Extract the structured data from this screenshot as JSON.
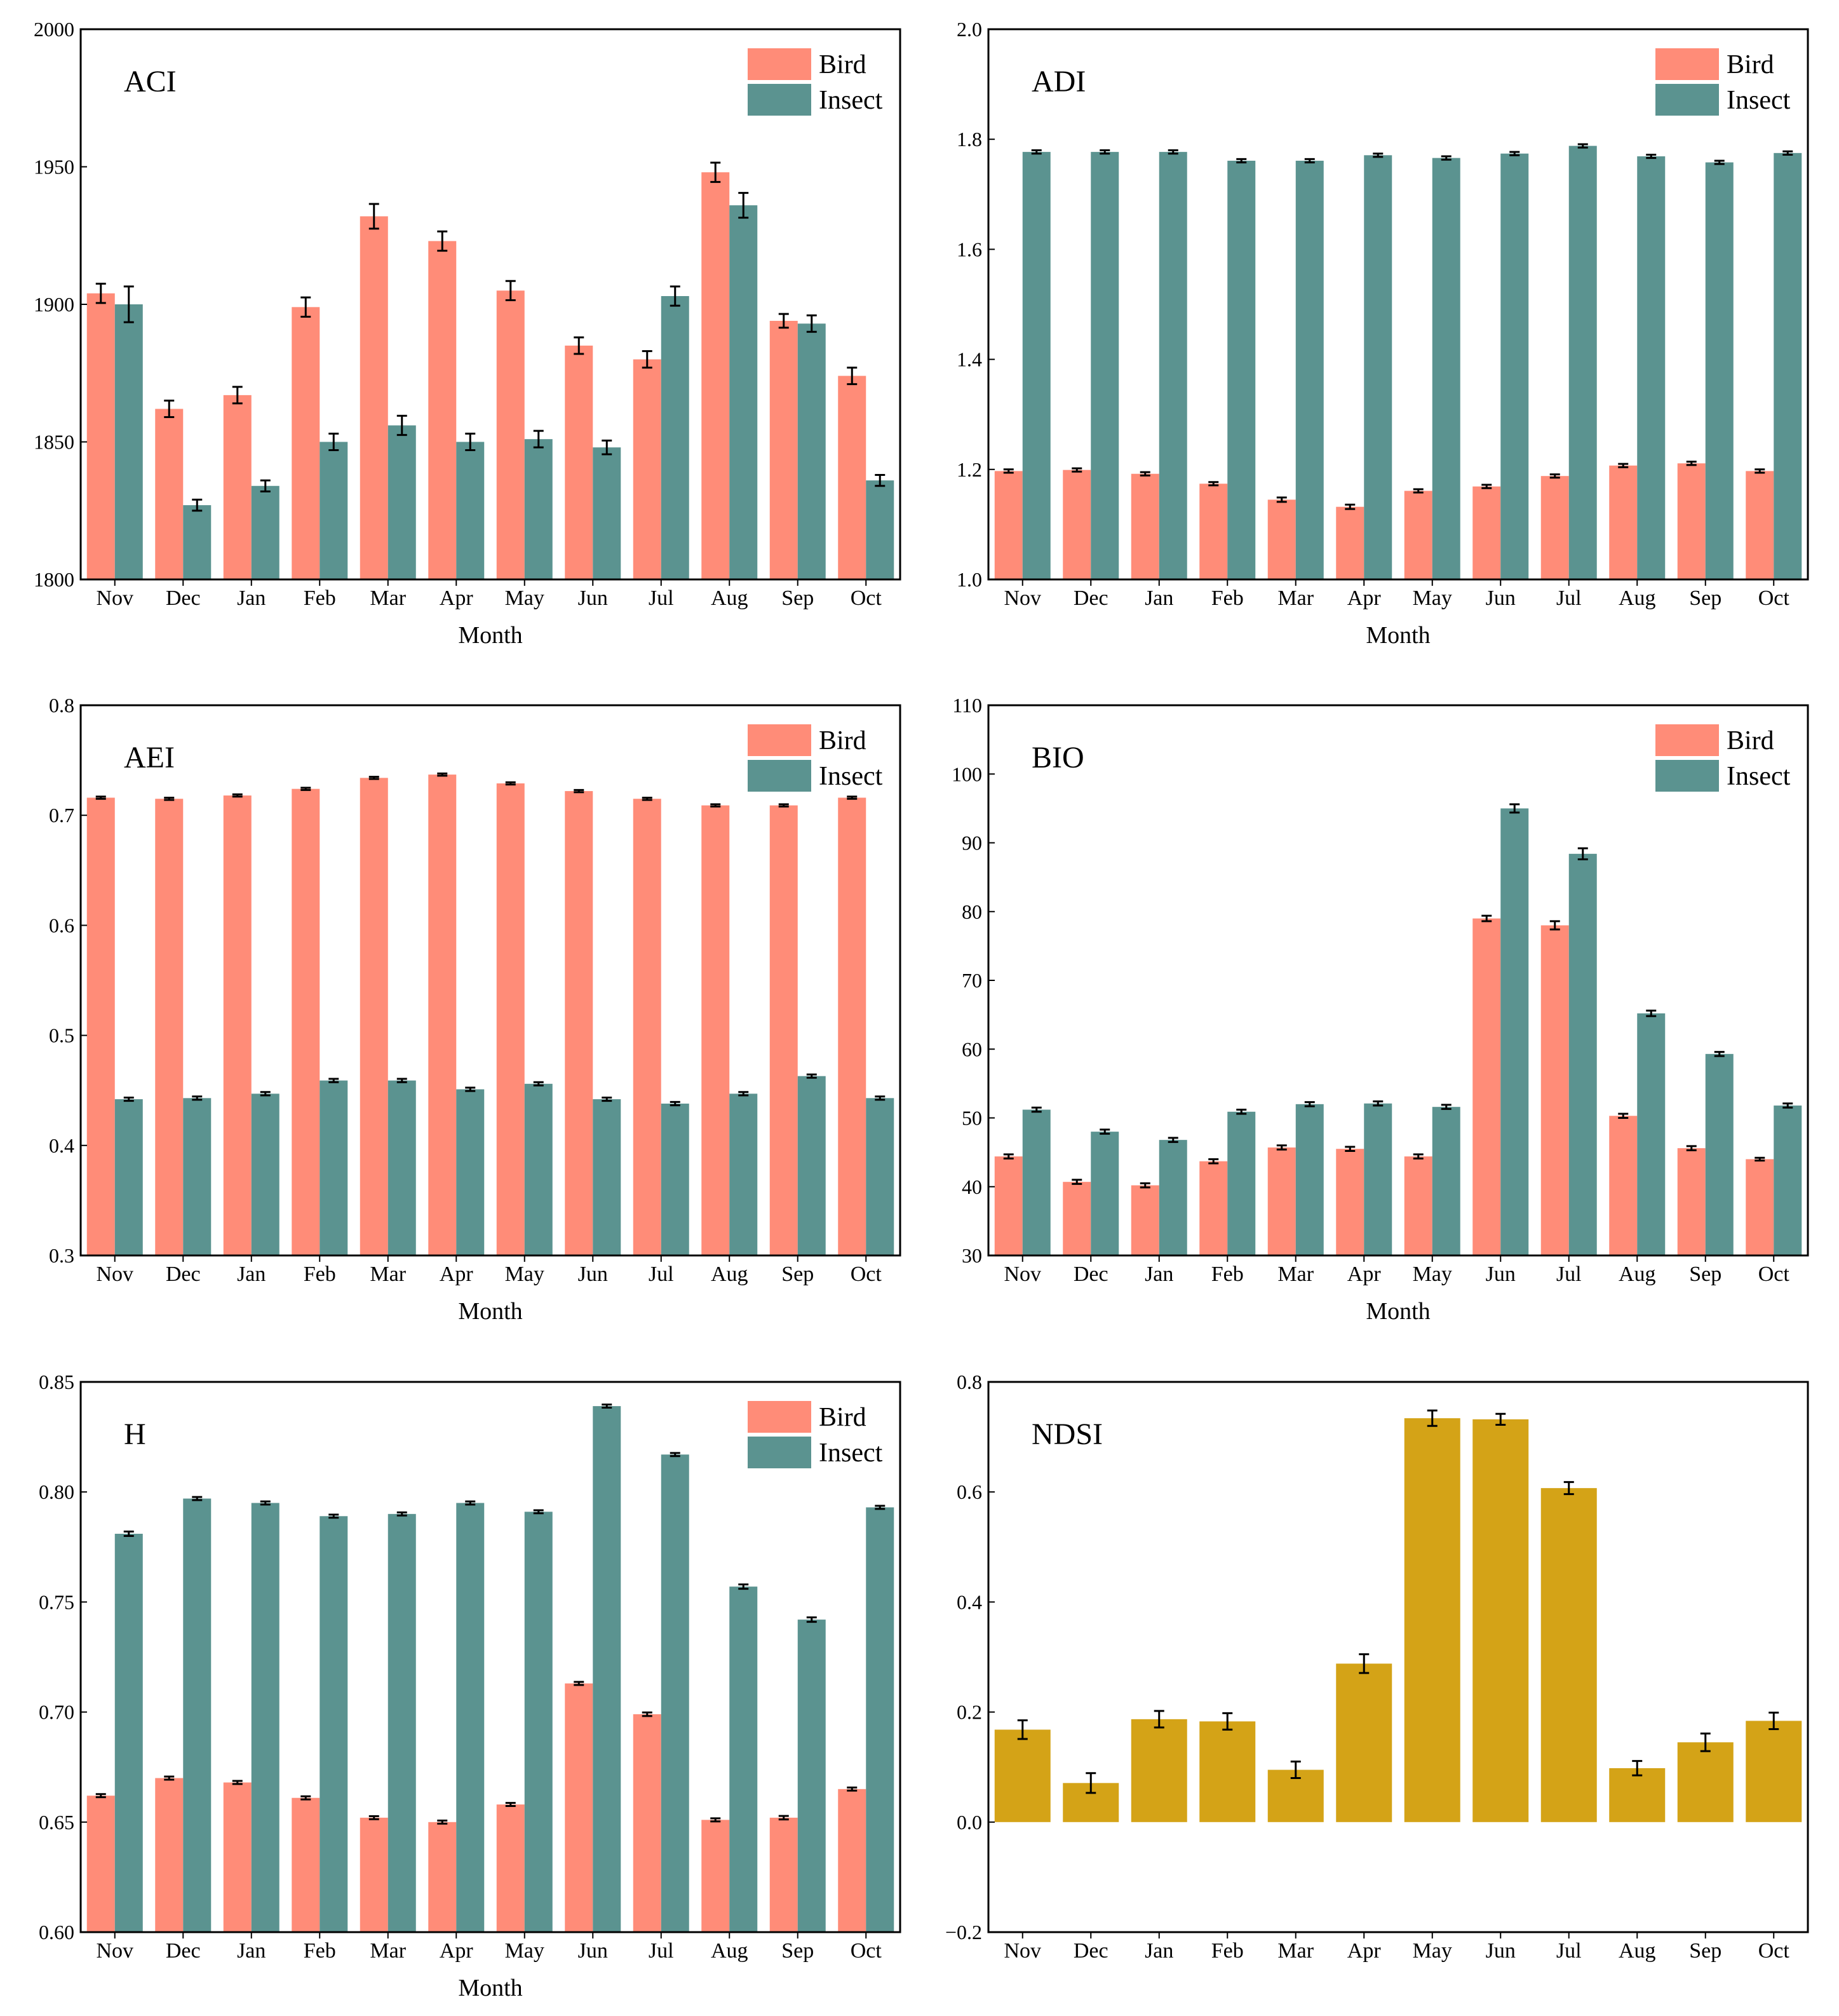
{
  "colors": {
    "bird": "#FF8C78",
    "insect": "#5B9390",
    "ndsi": "#D4A317",
    "axis": "#000000"
  },
  "x_categories": [
    "Nov",
    "Dec",
    "Jan",
    "Feb",
    "Mar",
    "Apr",
    "May",
    "Jun",
    "Jul",
    "Aug",
    "Sep",
    "Oct"
  ],
  "xlabel": "Month",
  "legend_labels": {
    "bird": "Bird",
    "insect": "Insect"
  },
  "chart_data": [
    {
      "id": "aci",
      "type": "bar",
      "title": "ACI",
      "xlabel": "Month",
      "ylabel": "",
      "categories": [
        "Nov",
        "Dec",
        "Jan",
        "Feb",
        "Mar",
        "Apr",
        "May",
        "Jun",
        "Jul",
        "Aug",
        "Sep",
        "Oct"
      ],
      "ylim": [
        1800,
        2000
      ],
      "yticks": [
        1800,
        1850,
        1900,
        1950,
        2000
      ],
      "ytick_labels": [
        "1800",
        "1850",
        "1900",
        "1950",
        "2000"
      ],
      "legend": true,
      "legend_position": "top-right",
      "series": [
        {
          "name": "Bird",
          "color_key": "bird",
          "values": [
            1904,
            1862,
            1867,
            1899,
            1932,
            1923,
            1905,
            1885,
            1880,
            1948,
            1894,
            1874
          ],
          "errors": [
            3.5,
            3,
            3,
            3.5,
            4.5,
            3.5,
            3.5,
            3,
            3,
            3.5,
            2.5,
            3
          ]
        },
        {
          "name": "Insect",
          "color_key": "insect",
          "values": [
            1900,
            1827,
            1834,
            1850,
            1856,
            1850,
            1851,
            1848,
            1903,
            1936,
            1893,
            1836
          ],
          "errors": [
            6.5,
            2,
            2,
            3,
            3.5,
            3,
            3,
            2.5,
            3.5,
            4.5,
            3,
            2
          ]
        }
      ]
    },
    {
      "id": "adi",
      "type": "bar",
      "title": "ADI",
      "xlabel": "Month",
      "ylabel": "",
      "categories": [
        "Nov",
        "Dec",
        "Jan",
        "Feb",
        "Mar",
        "Apr",
        "May",
        "Jun",
        "Jul",
        "Aug",
        "Sep",
        "Oct"
      ],
      "ylim": [
        1.0,
        2.0
      ],
      "yticks": [
        1.0,
        1.2,
        1.4,
        1.6,
        1.8,
        2.0
      ],
      "ytick_labels": [
        "1.0",
        "1.2",
        "1.4",
        "1.6",
        "1.8",
        "2.0"
      ],
      "legend": true,
      "legend_position": "top-right",
      "series": [
        {
          "name": "Bird",
          "color_key": "bird",
          "values": [
            1.197,
            1.199,
            1.192,
            1.174,
            1.145,
            1.132,
            1.161,
            1.169,
            1.188,
            1.207,
            1.211,
            1.197
          ],
          "errors": [
            0.003,
            0.003,
            0.003,
            0.003,
            0.004,
            0.004,
            0.003,
            0.003,
            0.003,
            0.003,
            0.003,
            0.003
          ]
        },
        {
          "name": "Insect",
          "color_key": "insect",
          "values": [
            1.777,
            1.777,
            1.777,
            1.761,
            1.761,
            1.771,
            1.766,
            1.774,
            1.788,
            1.769,
            1.758,
            1.775
          ],
          "errors": [
            0.003,
            0.003,
            0.003,
            0.003,
            0.003,
            0.003,
            0.003,
            0.003,
            0.003,
            0.003,
            0.003,
            0.003
          ]
        }
      ]
    },
    {
      "id": "aei",
      "type": "bar",
      "title": "AEI",
      "xlabel": "Month",
      "ylabel": "",
      "categories": [
        "Nov",
        "Dec",
        "Jan",
        "Feb",
        "Mar",
        "Apr",
        "May",
        "Jun",
        "Jul",
        "Aug",
        "Sep",
        "Oct"
      ],
      "ylim": [
        0.3,
        0.8
      ],
      "yticks": [
        0.3,
        0.4,
        0.5,
        0.6,
        0.7,
        0.8
      ],
      "ytick_labels": [
        "0.3",
        "0.4",
        "0.5",
        "0.6",
        "0.7",
        "0.8"
      ],
      "legend": true,
      "legend_position": "top-right",
      "series": [
        {
          "name": "Bird",
          "color_key": "bird",
          "values": [
            0.716,
            0.715,
            0.718,
            0.724,
            0.734,
            0.737,
            0.729,
            0.722,
            0.715,
            0.709,
            0.709,
            0.716
          ],
          "errors": [
            0.001,
            0.001,
            0.001,
            0.001,
            0.001,
            0.001,
            0.001,
            0.001,
            0.001,
            0.001,
            0.001,
            0.001
          ]
        },
        {
          "name": "Insect",
          "color_key": "insect",
          "values": [
            0.442,
            0.443,
            0.447,
            0.459,
            0.459,
            0.451,
            0.456,
            0.442,
            0.438,
            0.447,
            0.463,
            0.443
          ],
          "errors": [
            0.0015,
            0.0015,
            0.0015,
            0.0015,
            0.0015,
            0.0015,
            0.0015,
            0.0015,
            0.0015,
            0.0015,
            0.0015,
            0.0015
          ]
        }
      ]
    },
    {
      "id": "bio",
      "type": "bar",
      "title": "BIO",
      "xlabel": "Month",
      "ylabel": "",
      "categories": [
        "Nov",
        "Dec",
        "Jan",
        "Feb",
        "Mar",
        "Apr",
        "May",
        "Jun",
        "Jul",
        "Aug",
        "Sep",
        "Oct"
      ],
      "ylim": [
        30,
        110
      ],
      "yticks": [
        30,
        40,
        50,
        60,
        70,
        80,
        90,
        100,
        110
      ],
      "ytick_labels": [
        "30",
        "40",
        "50",
        "60",
        "70",
        "80",
        "90",
        "100",
        "110"
      ],
      "legend": true,
      "legend_position": "top-right",
      "series": [
        {
          "name": "Bird",
          "color_key": "bird",
          "values": [
            44.4,
            40.7,
            40.2,
            43.7,
            45.7,
            45.5,
            44.4,
            79.0,
            78.0,
            50.3,
            45.6,
            44.0
          ],
          "errors": [
            0.3,
            0.3,
            0.3,
            0.3,
            0.3,
            0.3,
            0.3,
            0.4,
            0.6,
            0.3,
            0.3,
            0.2
          ]
        },
        {
          "name": "Insect",
          "color_key": "insect",
          "values": [
            51.2,
            48.0,
            46.8,
            50.9,
            52.0,
            52.1,
            51.6,
            95.0,
            88.4,
            65.2,
            59.3,
            51.8
          ],
          "errors": [
            0.3,
            0.3,
            0.3,
            0.3,
            0.3,
            0.3,
            0.3,
            0.6,
            0.8,
            0.4,
            0.3,
            0.3
          ]
        }
      ]
    },
    {
      "id": "h",
      "type": "bar",
      "title": "H",
      "xlabel": "Month",
      "ylabel": "",
      "categories": [
        "Nov",
        "Dec",
        "Jan",
        "Feb",
        "Mar",
        "Apr",
        "May",
        "Jun",
        "Jul",
        "Aug",
        "Sep",
        "Oct"
      ],
      "ylim": [
        0.6,
        0.85
      ],
      "yticks": [
        0.6,
        0.65,
        0.7,
        0.75,
        0.8,
        0.85
      ],
      "ytick_labels": [
        "0.60",
        "0.65",
        "0.70",
        "0.75",
        "0.80",
        "0.85"
      ],
      "legend": true,
      "legend_position": "top-right",
      "series": [
        {
          "name": "Bird",
          "color_key": "bird",
          "values": [
            0.662,
            0.67,
            0.668,
            0.661,
            0.652,
            0.65,
            0.658,
            0.713,
            0.699,
            0.651,
            0.652,
            0.665
          ],
          "errors": [
            0.0007,
            0.0007,
            0.0007,
            0.0007,
            0.0007,
            0.0007,
            0.0007,
            0.0007,
            0.0008,
            0.0007,
            0.0008,
            0.0007
          ]
        },
        {
          "name": "Insect",
          "color_key": "insect",
          "values": [
            0.781,
            0.797,
            0.795,
            0.789,
            0.79,
            0.795,
            0.791,
            0.839,
            0.817,
            0.757,
            0.742,
            0.793
          ],
          "errors": [
            0.001,
            0.0007,
            0.0007,
            0.0007,
            0.0007,
            0.0007,
            0.0007,
            0.0007,
            0.0007,
            0.001,
            0.001,
            0.0007
          ]
        }
      ]
    },
    {
      "id": "ndsi",
      "type": "bar",
      "title": "NDSI",
      "xlabel": "",
      "ylabel": "",
      "categories": [
        "Nov",
        "Dec",
        "Jan",
        "Feb",
        "Mar",
        "Apr",
        "May",
        "Jun",
        "Jul",
        "Aug",
        "Sep",
        "Oct"
      ],
      "ylim": [
        -0.2,
        0.8
      ],
      "yticks": [
        -0.2,
        0.0,
        0.2,
        0.4,
        0.6,
        0.8
      ],
      "ytick_labels": [
        "−0.2",
        "0.0",
        "0.2",
        "0.4",
        "0.6",
        "0.8"
      ],
      "legend": false,
      "series": [
        {
          "name": "NDSI",
          "color_key": "ndsi",
          "values": [
            0.168,
            0.071,
            0.187,
            0.183,
            0.095,
            0.288,
            0.734,
            0.732,
            0.607,
            0.098,
            0.145,
            0.184
          ],
          "errors": [
            0.017,
            0.018,
            0.015,
            0.015,
            0.015,
            0.017,
            0.014,
            0.01,
            0.011,
            0.013,
            0.016,
            0.015
          ]
        }
      ]
    }
  ]
}
